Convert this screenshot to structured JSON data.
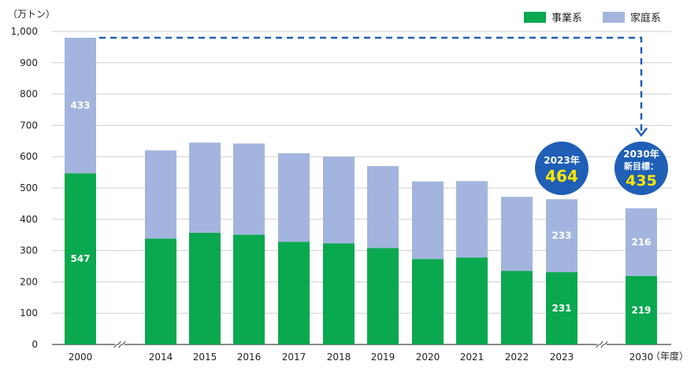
{
  "chart_data": {
    "type": "bar",
    "stacked": true,
    "y_unit": "（万トン）",
    "x_unit": "（年度）",
    "ylim": [
      0,
      1000
    ],
    "y_ticks": [
      "0",
      "100",
      "200",
      "300",
      "400",
      "500",
      "600",
      "700",
      "800",
      "900",
      "1,000"
    ],
    "categories": [
      "2000",
      "2014",
      "2015",
      "2016",
      "2017",
      "2018",
      "2019",
      "2020",
      "2021",
      "2022",
      "2023",
      "2030"
    ],
    "series": [
      {
        "name": "事業系",
        "color": "#0aa84f",
        "values": [
          547,
          338,
          357,
          351,
          328,
          323,
          308,
          273,
          278,
          235,
          231,
          219
        ]
      },
      {
        "name": "家庭系",
        "color": "#a3b5de",
        "values": [
          433,
          282,
          288,
          291,
          283,
          277,
          262,
          248,
          244,
          237,
          233,
          216
        ]
      }
    ],
    "data_labels": {
      "2000": {
        "事業系": "547",
        "家庭系": "433"
      },
      "2023": {
        "事業系": "231",
        "家庭系": "233"
      },
      "2030": {
        "事業系": "219",
        "家庭系": "216"
      }
    },
    "callouts": [
      {
        "category": "2023",
        "line1": "2023年",
        "value": "464"
      },
      {
        "category": "2030",
        "line1": "2030年",
        "line2": "新目標：",
        "value": "435"
      }
    ],
    "arrow": {
      "from": "2000",
      "to": "2030",
      "style": "dashed",
      "color": "#1f5fb5"
    },
    "axis_breaks": [
      "2000-2014",
      "2023-2030"
    ],
    "grid": true,
    "legend_position": "top-right"
  }
}
